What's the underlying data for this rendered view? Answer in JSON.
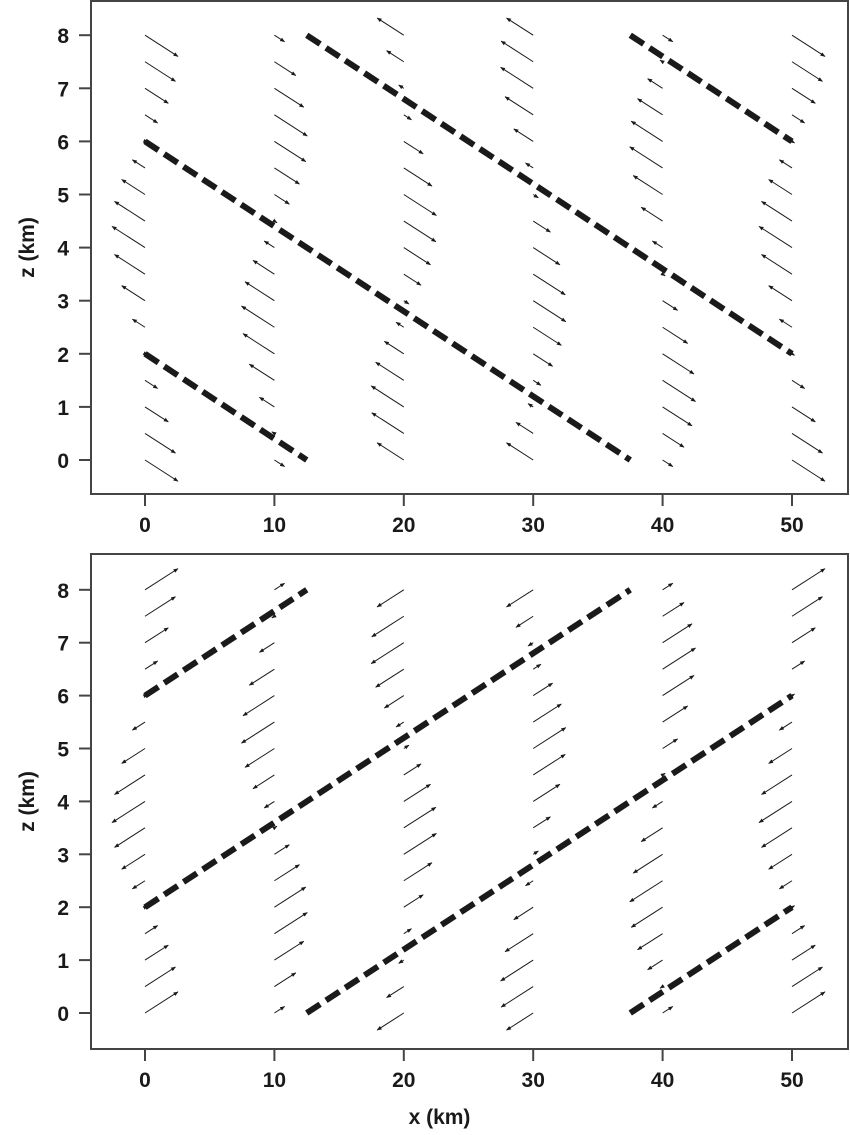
{
  "chart_data": [
    {
      "type": "quiver",
      "panel": "top",
      "xlabel": "",
      "ylabel": "z (km)",
      "xlim": [
        -4,
        54
      ],
      "ylim": [
        -0.6,
        8.6
      ],
      "xticks": [
        "0",
        "10",
        "20",
        "30",
        "40",
        "50"
      ],
      "yticks": [
        "0",
        "1",
        "2",
        "3",
        "4",
        "5",
        "6",
        "7",
        "8"
      ],
      "grid": false,
      "arrow_z": [
        0,
        0.5,
        1,
        1.5,
        2,
        2.5,
        3,
        3.5,
        4,
        4.5,
        5,
        5.5,
        6,
        6.5,
        7,
        7.5,
        8
      ],
      "columns": [
        {
          "x": 0,
          "u": [
            1,
            0.924,
            0.707,
            0.383,
            0,
            -0.383,
            -0.707,
            -0.924,
            -1,
            -0.924,
            -0.707,
            -0.383,
            0,
            0.383,
            0.707,
            0.924,
            1
          ]
        },
        {
          "x": 10,
          "u": [
            0.309,
            -0.078,
            -0.454,
            -0.76,
            -0.951,
            -0.997,
            -0.891,
            -0.649,
            -0.309,
            0.078,
            0.454,
            0.76,
            0.951,
            0.997,
            0.891,
            0.649,
            0.309
          ]
        },
        {
          "x": 20,
          "u": [
            -0.809,
            -0.972,
            -0.988,
            -0.853,
            -0.588,
            -0.233,
            0.156,
            0.522,
            0.809,
            0.972,
            0.988,
            0.853,
            0.588,
            0.233,
            -0.156,
            -0.522,
            -0.809
          ]
        },
        {
          "x": 30,
          "u": [
            -0.809,
            -0.522,
            -0.156,
            0.233,
            0.588,
            0.853,
            0.988,
            0.972,
            0.809,
            0.522,
            0.156,
            -0.233,
            -0.588,
            -0.853,
            -0.988,
            -0.972,
            -0.809
          ]
        },
        {
          "x": 40,
          "u": [
            0.309,
            0.649,
            0.891,
            0.997,
            0.951,
            0.76,
            0.454,
            0.078,
            -0.309,
            -0.649,
            -0.891,
            -0.997,
            -0.951,
            -0.76,
            -0.454,
            -0.078,
            0.309
          ]
        },
        {
          "x": 50,
          "u": [
            1,
            0.924,
            0.707,
            0.383,
            0,
            -0.383,
            -0.707,
            -0.924,
            -1,
            -0.924,
            -0.707,
            -0.383,
            0,
            0.383,
            0.707,
            0.924,
            1
          ]
        }
      ],
      "w_sign": -1,
      "phase_lines": [
        [
          [
            0,
            2
          ],
          [
            12.5,
            0
          ]
        ],
        [
          [
            0,
            6
          ],
          [
            37.5,
            0
          ]
        ],
        [
          [
            12.5,
            8
          ],
          [
            50,
            2
          ]
        ],
        [
          [
            37.5,
            8
          ],
          [
            50,
            6
          ]
        ]
      ]
    },
    {
      "type": "quiver",
      "panel": "bottom",
      "xlabel": "x (km)",
      "ylabel": "z (km)",
      "xlim": [
        -4,
        54
      ],
      "ylim": [
        -0.7,
        8.6
      ],
      "xticks": [
        "0",
        "10",
        "20",
        "30",
        "40",
        "50"
      ],
      "yticks": [
        "0",
        "1",
        "2",
        "3",
        "4",
        "5",
        "6",
        "7",
        "8"
      ],
      "grid": false,
      "arrow_z": [
        0,
        0.5,
        1,
        1.5,
        2,
        2.5,
        3,
        3.5,
        4,
        4.5,
        5,
        5.5,
        6,
        6.5,
        7,
        7.5,
        8
      ],
      "columns": [
        {
          "x": 0,
          "u": [
            1,
            0.924,
            0.707,
            0.383,
            0,
            -0.383,
            -0.707,
            -0.924,
            -1,
            -0.924,
            -0.707,
            -0.383,
            0,
            0.383,
            0.707,
            0.924,
            1
          ]
        },
        {
          "x": 10,
          "u": [
            0.309,
            0.649,
            0.891,
            0.997,
            0.951,
            0.76,
            0.454,
            0.078,
            -0.309,
            -0.649,
            -0.891,
            -0.997,
            -0.951,
            -0.76,
            -0.454,
            -0.078,
            0.309
          ]
        },
        {
          "x": 20,
          "u": [
            -0.809,
            -0.522,
            -0.156,
            0.233,
            0.588,
            0.853,
            0.988,
            0.972,
            0.809,
            0.522,
            0.156,
            -0.233,
            -0.588,
            -0.853,
            -0.988,
            -0.972,
            -0.809
          ]
        },
        {
          "x": 30,
          "u": [
            -0.809,
            -0.972,
            -0.988,
            -0.853,
            -0.588,
            -0.233,
            0.156,
            0.522,
            0.809,
            0.972,
            0.988,
            0.853,
            0.588,
            0.233,
            -0.156,
            -0.522,
            -0.809
          ]
        },
        {
          "x": 40,
          "u": [
            0.309,
            -0.078,
            -0.454,
            -0.76,
            -0.951,
            -0.997,
            -0.891,
            -0.649,
            -0.309,
            0.078,
            0.454,
            0.76,
            0.951,
            0.997,
            0.891,
            0.649,
            0.309
          ]
        },
        {
          "x": 50,
          "u": [
            1,
            0.924,
            0.707,
            0.383,
            0,
            -0.383,
            -0.707,
            -0.924,
            -1,
            -0.924,
            -0.707,
            -0.383,
            0,
            0.383,
            0.707,
            0.924,
            1
          ]
        }
      ],
      "w_sign": 1,
      "phase_lines": [
        [
          [
            0,
            6
          ],
          [
            12.5,
            8
          ]
        ],
        [
          [
            0,
            2
          ],
          [
            37.5,
            8
          ]
        ],
        [
          [
            12.5,
            0
          ],
          [
            50,
            6
          ]
        ],
        [
          [
            37.5,
            0
          ],
          [
            50,
            2
          ]
        ]
      ]
    }
  ],
  "colors": {
    "ink": "#1a1a1a",
    "frame": "#444444",
    "background": "#ffffff"
  }
}
